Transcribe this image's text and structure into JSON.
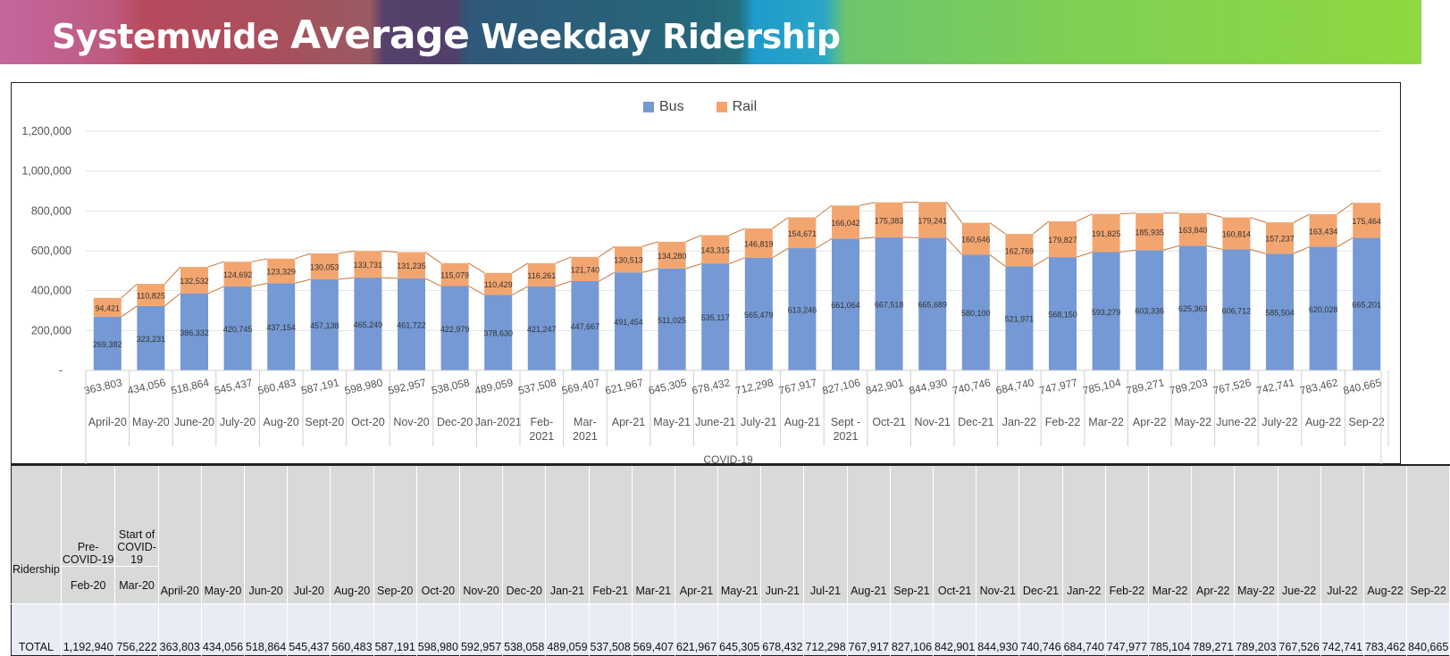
{
  "header": {
    "title_part1": "Systemwide ",
    "title_part2": "Average",
    "title_part3": " Weekday Ridership"
  },
  "chart_data": {
    "type": "bar",
    "stacked": true,
    "title": "Systemwide Average Weekday Ridership",
    "legend": [
      "Bus",
      "Rail"
    ],
    "legend_position": "top-center",
    "colors": {
      "Bus": "#7499d4",
      "Rail": "#f3a56f",
      "connector": "#c9773f"
    },
    "yticks": [
      "-",
      "200,000",
      "400,000",
      "600,000",
      "800,000",
      "1,000,000",
      "1,200,000"
    ],
    "ylim": [
      0,
      1200000
    ],
    "group_label": "COVID-19",
    "categories": [
      "April-20",
      "May-20",
      "June-20",
      "July-20",
      "Aug-20",
      "Sept-20",
      "Oct-20",
      "Nov-20",
      "Dec-20",
      "Jan-2021",
      "Feb-|2021",
      "Mar-|2021",
      "Apr-21",
      "May-21",
      "June-21",
      "July-21",
      "Aug-21",
      "Sept -|2021",
      "Oct-21",
      "Nov-21",
      "Dec-21",
      "Jan-22",
      "Feb-22",
      "Mar-22",
      "Apr-22",
      "May-22",
      "June-22",
      "July-22",
      "Aug-22",
      "Sep-22"
    ],
    "series": [
      {
        "name": "Bus",
        "values": [
          269382,
          323231,
          386332,
          420745,
          437154,
          457138,
          465249,
          461722,
          422979,
          378630,
          421247,
          447667,
          491454,
          511025,
          535117,
          565479,
          613246,
          661064,
          667518,
          665689,
          580100,
          521971,
          568150,
          593279,
          603336,
          625363,
          606712,
          585504,
          620028,
          665201
        ],
        "labels": [
          "269,382",
          "323,231",
          "386,332",
          "420,745",
          "437,154",
          "457,138",
          "465,249",
          "461,722",
          "422,979",
          "378,630",
          "421,247",
          "447,667",
          "491,454",
          "511,025",
          "535,117",
          "565,479",
          "613,246",
          "661,064",
          "667,518",
          "665,689",
          "580,100",
          "521,971",
          "568,150",
          "593,279",
          "603,336",
          "625,363",
          "606,712",
          "585,504",
          "620,028",
          "665,201"
        ]
      },
      {
        "name": "Rail",
        "values": [
          94421,
          110825,
          132532,
          124692,
          123329,
          130053,
          133731,
          131235,
          115079,
          110429,
          116261,
          121740,
          130513,
          134280,
          143315,
          146819,
          154671,
          166042,
          175383,
          179241,
          160646,
          162769,
          179827,
          191825,
          185935,
          163840,
          160814,
          157237,
          163434,
          175464
        ],
        "labels": [
          "94,421",
          "110,825",
          "132,532",
          "124,692",
          "123,329",
          "130,053",
          "133,731",
          "131,235",
          "115,079",
          "110,429",
          "116,261",
          "121,740",
          "130,513",
          "134,280",
          "143,315",
          "146,819",
          "154,671",
          "166,042",
          "175,383",
          "179,241",
          "160,646",
          "162,769",
          "179,827",
          "191,825",
          "185,935",
          "163,840",
          "160,814",
          "157,237",
          "163,434",
          "175,464"
        ]
      }
    ],
    "totals": [
      "363,803",
      "434,056",
      "518,864",
      "545,437",
      "560,483",
      "587,191",
      "598,980",
      "592,957",
      "538,058",
      "489,059",
      "537,508",
      "569,407",
      "621,967",
      "645,305",
      "678,432",
      "712,298",
      "767,917",
      "827,106",
      "842,901",
      "844,930",
      "740,746",
      "684,740",
      "747,977",
      "785,104",
      "789,271",
      "789,203",
      "767,526",
      "742,741",
      "783,462",
      "840,665"
    ]
  },
  "table": {
    "row_label_header": "Ridership",
    "phase_labels": [
      "Pre-|COVID-19",
      "Start of|COVID-|19"
    ],
    "months": [
      "Feb-20",
      "Mar-20",
      "April-20",
      "May-20",
      "Jun-20",
      "Jul-20",
      "Aug-20",
      "Sep-20",
      "Oct-20",
      "Nov-20",
      "Dec-20",
      "Jan-21",
      "Feb-21",
      "Mar-21",
      "Apr-21",
      "May-21",
      "Jun-21",
      "Jul-21",
      "Aug-21",
      "Sep-21",
      "Oct-21",
      "Nov-21",
      "Dec-21",
      "Jan-22",
      "Feb-22",
      "Mar-22",
      "Apr-22",
      "May-22",
      "Jue-22",
      "Jul-22",
      "Aug-22",
      "Sep-22"
    ],
    "row_label": "TOTAL",
    "totals": [
      "1,192,940",
      "756,222",
      "363,803",
      "434,056",
      "518,864",
      "545,437",
      "560,483",
      "587,191",
      "598,980",
      "592,957",
      "538,058",
      "489,059",
      "537,508",
      "569,407",
      "621,967",
      "645,305",
      "678,432",
      "712,298",
      "767,917",
      "827,106",
      "842,901",
      "844,930",
      "740,746",
      "684,740",
      "747,977",
      "785,104",
      "789,271",
      "789,203",
      "767,526",
      "742,741",
      "783,462",
      "840,665"
    ]
  }
}
